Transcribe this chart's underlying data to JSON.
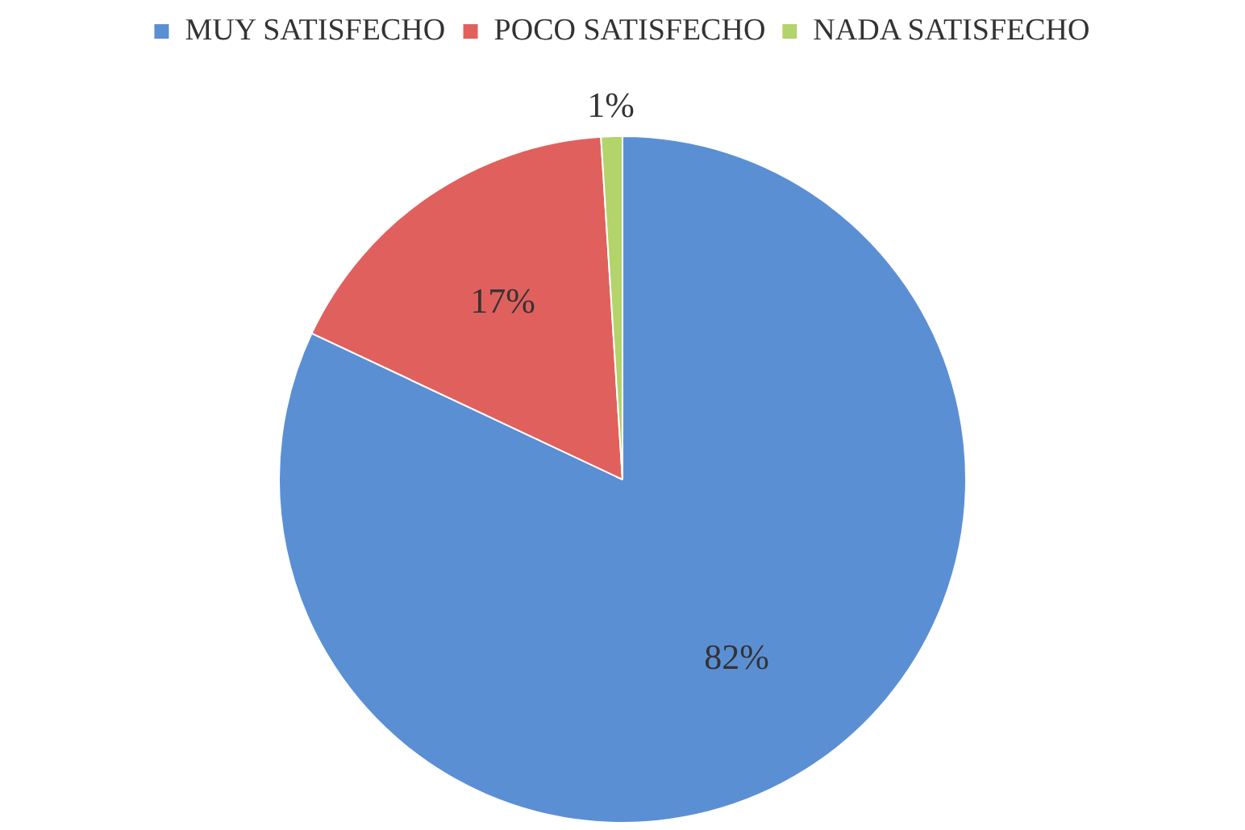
{
  "chart_data": {
    "type": "pie",
    "categories": [
      "MUY SATISFECHO",
      "POCO SATISFECHO",
      "NADA SATISFECHO"
    ],
    "values": [
      82,
      17,
      1
    ],
    "colors": [
      "#5b8fd4",
      "#e0605e",
      "#b3d36b"
    ],
    "value_labels": [
      "82%",
      "17%",
      "1%"
    ],
    "legend": "top"
  }
}
